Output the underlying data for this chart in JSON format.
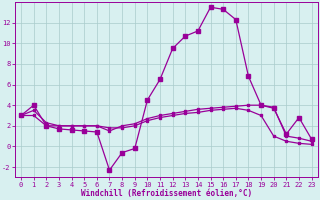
{
  "x": [
    0,
    1,
    2,
    3,
    4,
    5,
    6,
    7,
    8,
    9,
    10,
    11,
    12,
    13,
    14,
    15,
    16,
    17,
    18,
    19,
    20,
    21,
    22,
    23
  ],
  "line1": [
    3.0,
    4.0,
    2.0,
    1.7,
    1.6,
    1.5,
    1.4,
    -2.3,
    -0.6,
    -0.2,
    4.5,
    6.5,
    9.5,
    10.7,
    11.2,
    13.5,
    13.3,
    12.3,
    6.8,
    4.0,
    3.7,
    1.2,
    2.8,
    0.7
  ],
  "line2": [
    3.0,
    3.0,
    2.0,
    2.0,
    2.0,
    2.0,
    2.0,
    1.8,
    1.8,
    2.0,
    2.5,
    2.8,
    3.0,
    3.2,
    3.3,
    3.5,
    3.6,
    3.7,
    3.5,
    3.0,
    1.0,
    0.5,
    0.3,
    0.2
  ],
  "line3": [
    3.0,
    3.5,
    2.3,
    2.0,
    2.0,
    2.0,
    2.0,
    1.5,
    2.0,
    2.2,
    2.7,
    3.0,
    3.2,
    3.4,
    3.6,
    3.7,
    3.8,
    3.9,
    4.0,
    4.0,
    3.8,
    1.0,
    0.8,
    0.5
  ],
  "line_color": "#990099",
  "bg_color": "#d8f0f0",
  "grid_color": "#aacccc",
  "xlabel": "Windchill (Refroidissement éolien,°C)",
  "ylim": [
    -3,
    14
  ],
  "xlim": [
    -0.5,
    23.5
  ],
  "yticks": [
    -2,
    0,
    2,
    4,
    6,
    8,
    10,
    12
  ],
  "xticks": [
    0,
    1,
    2,
    3,
    4,
    5,
    6,
    7,
    8,
    9,
    10,
    11,
    12,
    13,
    14,
    15,
    16,
    17,
    18,
    19,
    20,
    21,
    22,
    23
  ],
  "tick_fontsize": 5.0,
  "xlabel_fontsize": 5.5,
  "marker": "s",
  "markersize1": 2.5,
  "markersize2": 1.8,
  "linewidth": 0.9
}
